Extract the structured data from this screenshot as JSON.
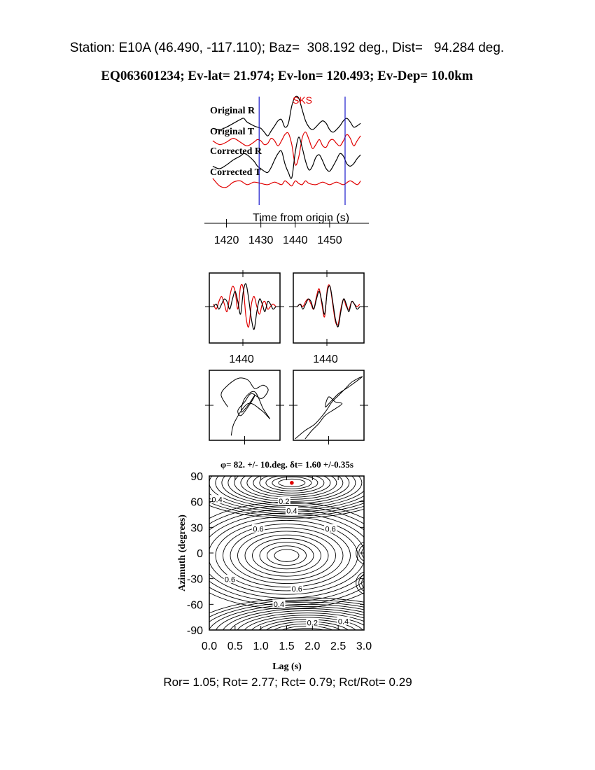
{
  "header": {
    "station_line": "Station: E10A (46.490, -117.110); Baz=  308.192 deg., Dist=   94.284 deg.",
    "event_line": "EQ063601234; Ev-lat=  21.974; Ev-lon= 120.493; Ev-Dep= 10.0km"
  },
  "footer": {
    "ratios_line": "Ror= 1.05; Rot= 2.77; Rct= 0.79; Rct/Rot= 0.29"
  },
  "colors": {
    "radial": "#000000",
    "transverse": "#e00000",
    "window_marker": "#1a1acc",
    "best_fit_dot": "#e00000"
  },
  "chart_data": [
    {
      "type": "line",
      "panel": "seismograms",
      "phase_label": "SKS",
      "trace_labels": [
        "Original R",
        "Original T",
        "Corrected R",
        "Corrected T"
      ],
      "xlabel": "Time from origin (s)",
      "ticks": [
        1420,
        1430,
        1440,
        1450
      ],
      "xlim": [
        1415,
        1460
      ],
      "window": [
        1429.5,
        1454.5
      ],
      "series": [
        {
          "name": "Original R",
          "color": "#000000",
          "x": [
            1416,
            1418,
            1420,
            1422,
            1424,
            1425,
            1426,
            1428,
            1429,
            1430,
            1431,
            1432,
            1433,
            1434,
            1435,
            1436,
            1437,
            1438,
            1439,
            1440,
            1441,
            1442,
            1443,
            1444,
            1445,
            1446,
            1447,
            1448,
            1449,
            1450,
            1451,
            1452,
            1453,
            1454,
            1455,
            1456,
            1457,
            1458,
            1459
          ],
          "y": [
            -0.3,
            -0.4,
            -0.2,
            0.1,
            0.4,
            0.5,
            0.2,
            -0.1,
            -0.2,
            -0.3,
            -0.6,
            -0.9,
            -0.5,
            -0.1,
            0.3,
            0.4,
            -0.2,
            0.1,
            1.5,
            2.2,
            2.1,
            1.2,
            0.3,
            -0.2,
            -0.4,
            -0.2,
            0.1,
            0.3,
            0.1,
            -0.4,
            -0.6,
            -0.4,
            -0.1,
            0.3,
            0.5,
            0.2,
            -0.2,
            -0.1,
            0.1
          ]
        },
        {
          "name": "Original T",
          "color": "#e00000",
          "x": [
            1416,
            1418,
            1420,
            1422,
            1424,
            1426,
            1428,
            1429,
            1430,
            1431,
            1432,
            1433,
            1434,
            1435,
            1436,
            1437,
            1438,
            1439,
            1440,
            1441,
            1442,
            1443,
            1444,
            1445,
            1446,
            1447,
            1448,
            1449,
            1450,
            1451,
            1452,
            1453,
            1454,
            1455,
            1456,
            1457,
            1458,
            1459
          ],
          "y": [
            0.1,
            -0.2,
            0.0,
            0.3,
            0.0,
            -0.3,
            0.0,
            0.2,
            0.1,
            -0.2,
            -0.1,
            0.3,
            0.1,
            -0.3,
            0.1,
            0.6,
            0.7,
            -0.2,
            -1.8,
            -1.2,
            0.3,
            0.8,
            0.2,
            -0.5,
            -0.2,
            0.2,
            -0.3,
            -0.4,
            0.1,
            0.2,
            -0.1,
            -0.3,
            0.1,
            0.6,
            0.3,
            -0.3,
            0.1,
            0.5
          ]
        },
        {
          "name": "Corrected R",
          "color": "#000000",
          "x": [
            1416,
            1418,
            1420,
            1422,
            1424,
            1425,
            1426,
            1428,
            1429,
            1430,
            1431,
            1432,
            1433,
            1434,
            1435,
            1436,
            1437,
            1438,
            1439,
            1440,
            1441,
            1442,
            1443,
            1444,
            1445,
            1446,
            1447,
            1448,
            1449,
            1450,
            1451,
            1452,
            1453,
            1454,
            1455,
            1456,
            1457,
            1458,
            1459
          ],
          "y": [
            -0.3,
            -0.5,
            -0.2,
            0.2,
            0.5,
            0.7,
            0.6,
            0.1,
            -0.3,
            -0.5,
            -0.7,
            -0.8,
            -0.4,
            0.2,
            0.7,
            0.9,
            -0.1,
            -0.8,
            -1.2,
            0.8,
            2.0,
            1.2,
            0.1,
            -0.6,
            -0.3,
            0.4,
            0.6,
            0.1,
            -0.5,
            -0.7,
            -0.3,
            0.2,
            0.7,
            0.5,
            -0.1,
            -0.3,
            -0.1,
            0.3,
            0.6
          ]
        },
        {
          "name": "Corrected T",
          "color": "#e00000",
          "x": [
            1416,
            1418,
            1420,
            1422,
            1424,
            1426,
            1428,
            1430,
            1432,
            1434,
            1436,
            1437,
            1438,
            1439,
            1440,
            1441,
            1442,
            1443,
            1444,
            1446,
            1448,
            1450,
            1452,
            1454,
            1456,
            1458,
            1459
          ],
          "y": [
            0.4,
            -0.2,
            -0.3,
            0.1,
            0.2,
            -0.1,
            0.1,
            0.0,
            -0.1,
            0.1,
            -0.1,
            0.2,
            0.0,
            -0.2,
            0.2,
            0.0,
            -0.1,
            0.2,
            0.0,
            -0.1,
            0.1,
            -0.1,
            0.1,
            -0.1,
            0.2,
            -0.1,
            0.2
          ]
        }
      ]
    },
    {
      "type": "line",
      "panel": "waveform-comparison",
      "tick": 1440,
      "subpanels": [
        {
          "name": "fast-slow-uncorrected",
          "black": [
            0.0,
            0.1,
            -0.1,
            0.1,
            0.3,
            0.2,
            -0.1,
            0.3,
            0.6,
            0.2,
            -0.3,
            0.6,
            0.9,
            0.3,
            -0.5,
            -0.9,
            -0.2,
            0.3,
            0.1,
            -0.2,
            0.2,
            0.1,
            -0.1,
            0.0
          ],
          "red": [
            0.1,
            -0.1,
            0.2,
            0.4,
            0.1,
            -0.2,
            0.4,
            0.8,
            0.6,
            -0.1,
            0.8,
            0.7,
            -0.4,
            -0.8,
            0.1,
            0.4,
            0.0,
            -0.3,
            0.1,
            0.2,
            -0.1,
            0.0,
            0.1,
            0.0
          ]
        },
        {
          "name": "fast-slow-corrected",
          "black": [
            0.0,
            0.1,
            -0.1,
            0.1,
            0.3,
            0.2,
            -0.1,
            0.3,
            0.6,
            0.2,
            -0.3,
            0.6,
            0.8,
            0.2,
            -0.5,
            -0.8,
            -0.2,
            0.3,
            0.1,
            -0.2,
            0.2,
            0.1,
            -0.1,
            0.0
          ],
          "red": [
            0.0,
            0.1,
            0.0,
            0.2,
            0.3,
            0.1,
            -0.1,
            0.4,
            0.7,
            0.1,
            -0.4,
            0.7,
            0.8,
            0.1,
            -0.6,
            -0.7,
            -0.1,
            0.3,
            0.0,
            -0.1,
            0.2,
            0.1,
            0.0,
            0.1
          ]
        }
      ]
    },
    {
      "type": "scatter",
      "panel": "particle-motion",
      "subpanels": [
        {
          "name": "particle-motion-before",
          "x": [
            -0.5,
            -0.7,
            -0.55,
            -0.2,
            0.1,
            0.3,
            0.55,
            0.7,
            0.5,
            0.2,
            0.0,
            -0.2,
            -0.1,
            0.2,
            0.3,
            0.1,
            -0.1,
            0.0,
            0.3,
            0.55,
            0.75,
            0.5,
            0.1,
            -0.3,
            -0.4
          ],
          "y": [
            -0.05,
            0.3,
            0.55,
            0.8,
            0.75,
            0.5,
            0.6,
            0.45,
            0.2,
            0.35,
            0.1,
            -0.15,
            -0.3,
            0.1,
            0.3,
            0.0,
            -0.2,
            0.2,
            0.4,
            -0.1,
            -0.4,
            -0.15,
            0.05,
            -0.5,
            -0.9
          ]
        },
        {
          "name": "particle-motion-after",
          "x": [
            -1.0,
            -0.7,
            -0.4,
            -0.1,
            0.1,
            0.3,
            0.5,
            0.7,
            1.0,
            0.6,
            0.3,
            0.1,
            -0.1,
            0.0,
            0.2,
            0.4,
            0.2,
            -0.1,
            -0.3,
            -0.5,
            -0.7
          ],
          "y": [
            -1.0,
            -0.75,
            -0.55,
            -0.2,
            0.1,
            0.3,
            0.5,
            0.7,
            0.85,
            0.55,
            0.35,
            0.15,
            -0.05,
            0.25,
            0.1,
            0.05,
            -0.1,
            -0.3,
            -0.55,
            -0.75,
            -1.0
          ]
        }
      ]
    },
    {
      "type": "heatmap",
      "panel": "energy-contour",
      "title": "φ= 82. +/- 10.deg. δt= 1.60 +/-0.35s",
      "xlabel": "Lag (s)",
      "ylabel": "Azimuth (degrees)",
      "xlim": [
        0.0,
        3.0
      ],
      "ylim": [
        -90,
        90
      ],
      "xticks": [
        "0.0",
        "0.5",
        "1.0",
        "1.5",
        "2.0",
        "2.5",
        "3.0"
      ],
      "yticks": [
        "90",
        "60",
        "30",
        "0",
        "-30",
        "-60",
        "-90"
      ],
      "best_fit": {
        "lag": 1.6,
        "azimuth": 82
      },
      "contour_labels": [
        {
          "text": "0.4",
          "lag": 0.15,
          "azimuth": 62
        },
        {
          "text": "0.2",
          "lag": 1.45,
          "azimuth": 60
        },
        {
          "text": "0.4",
          "lag": 1.6,
          "azimuth": 49
        },
        {
          "text": "0.6",
          "lag": 0.95,
          "azimuth": 28
        },
        {
          "text": "0.6",
          "lag": 2.35,
          "azimuth": 28
        },
        {
          "text": "0.6",
          "lag": 0.4,
          "azimuth": -31
        },
        {
          "text": "0.6",
          "lag": 1.7,
          "azimuth": -42
        },
        {
          "text": "0.4",
          "lag": 1.35,
          "azimuth": -60
        },
        {
          "text": "0.2",
          "lag": 2.0,
          "azimuth": -82
        },
        {
          "text": "0.4",
          "lag": 2.6,
          "azimuth": -80
        }
      ]
    }
  ]
}
